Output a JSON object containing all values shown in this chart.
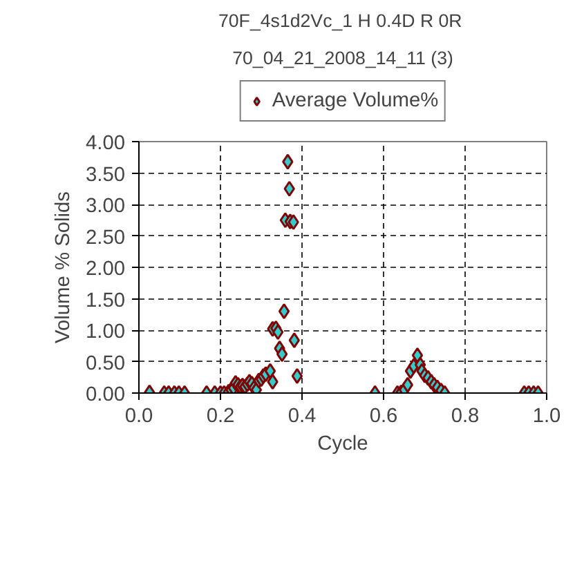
{
  "chart_data": {
    "type": "scatter",
    "title": "70F_4s1d2Vc_1 H 0.4D R  0R",
    "subtitle": "70_04_21_2008_14_11 (3)",
    "xlabel": "Cycle",
    "ylabel": "Volume % Solids",
    "xlim": [
      0,
      1
    ],
    "xticks": [
      {
        "value": 0,
        "label": "0.0"
      },
      {
        "value": 0.2,
        "label": "0.2"
      },
      {
        "value": 0.4,
        "label": "0.4"
      },
      {
        "value": 0.6,
        "label": "0.6"
      },
      {
        "value": 0.8,
        "label": "0.8"
      },
      {
        "value": 1,
        "label": "1.0"
      }
    ],
    "ylim": [
      0,
      4
    ],
    "yticks": [
      {
        "value": 0,
        "label": "0.00"
      },
      {
        "value": 0.5,
        "label": "0.50"
      },
      {
        "value": 1,
        "label": "1.00"
      },
      {
        "value": 1.5,
        "label": "1.50"
      },
      {
        "value": 2,
        "label": "2.00"
      },
      {
        "value": 2.5,
        "label": "2.50"
      },
      {
        "value": 3,
        "label": "3.00"
      },
      {
        "value": 3.5,
        "label": "3.50"
      },
      {
        "value": 4,
        "label": "4.00"
      }
    ],
    "grid": true,
    "legend": "top",
    "marker": "diamond",
    "series": [
      {
        "name": "Average Volume%",
        "color": "#33cccc",
        "x": [
          0.026,
          0.062,
          0.073,
          0.087,
          0.098,
          0.112,
          0.166,
          0.186,
          0.2,
          0.209,
          0.22,
          0.226,
          0.232,
          0.237,
          0.243,
          0.249,
          0.254,
          0.26,
          0.266,
          0.271,
          0.277,
          0.282,
          0.288,
          0.294,
          0.3,
          0.305,
          0.311,
          0.322,
          0.328,
          0.328,
          0.336,
          0.341,
          0.345,
          0.351,
          0.356,
          0.359,
          0.365,
          0.369,
          0.371,
          0.379,
          0.381,
          0.388,
          0.579,
          0.634,
          0.643,
          0.651,
          0.659,
          0.666,
          0.674,
          0.683,
          0.69,
          0.694,
          0.701,
          0.709,
          0.717,
          0.724,
          0.732,
          0.741,
          0.75,
          0.945,
          0.956,
          0.968,
          0.979
        ],
        "values": [
          0.01,
          0,
          0,
          0,
          0,
          0,
          0,
          0,
          0,
          0,
          0.02,
          0.05,
          0.08,
          0.16,
          0.13,
          0.1,
          0.12,
          0.1,
          0.14,
          0.18,
          0.15,
          0.08,
          0.05,
          0.2,
          0.22,
          0.27,
          0.3,
          0.35,
          0.18,
          1.02,
          1.03,
          0.97,
          0.71,
          0.62,
          1.3,
          2.75,
          3.68,
          3.25,
          2.73,
          2.72,
          0.84,
          0.27,
          0,
          0,
          0.01,
          0.05,
          0.13,
          0.35,
          0.43,
          0.6,
          0.45,
          0.35,
          0.28,
          0.24,
          0.18,
          0.13,
          0.09,
          0.04,
          0,
          0,
          0,
          0,
          0
        ]
      }
    ]
  }
}
